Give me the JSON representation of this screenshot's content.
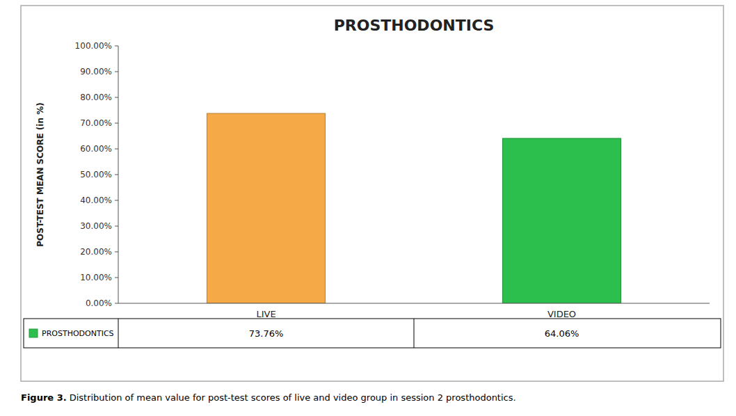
{
  "chart_data": {
    "type": "bar",
    "title": "PROSTHODONTICS",
    "ylabel": "POST-TEST MEAN SCORE (in %)",
    "categories": [
      "LIVE",
      "VIDEO"
    ],
    "series": [
      {
        "name": "PROSTHODONTICS",
        "color": "#2DBF4E",
        "colors": [
          "#F5A947",
          "#2DBF4E"
        ],
        "values": [
          73.76,
          64.06
        ],
        "value_labels": [
          "73.76%",
          "64.06%"
        ]
      }
    ],
    "ylim": [
      0,
      100
    ],
    "yticks": [
      {
        "value": 0,
        "label": "0.00%"
      },
      {
        "value": 10,
        "label": "10.00%"
      },
      {
        "value": 20,
        "label": "20.00%"
      },
      {
        "value": 30,
        "label": "30.00%"
      },
      {
        "value": 40,
        "label": "40.00%"
      },
      {
        "value": 50,
        "label": "50.00%"
      },
      {
        "value": 60,
        "label": "60.00%"
      },
      {
        "value": 70,
        "label": "70.00%"
      },
      {
        "value": 80,
        "label": "80.00%"
      },
      {
        "value": 90,
        "label": "90.00%"
      },
      {
        "value": 100,
        "label": "100.00%"
      }
    ],
    "grid": false,
    "legend": "bottom",
    "data_labels": true,
    "annotations": [
      "Figure 3.",
      "Distribution of mean value for post-test scores of live and video group in session 2 prosthodontics."
    ]
  }
}
